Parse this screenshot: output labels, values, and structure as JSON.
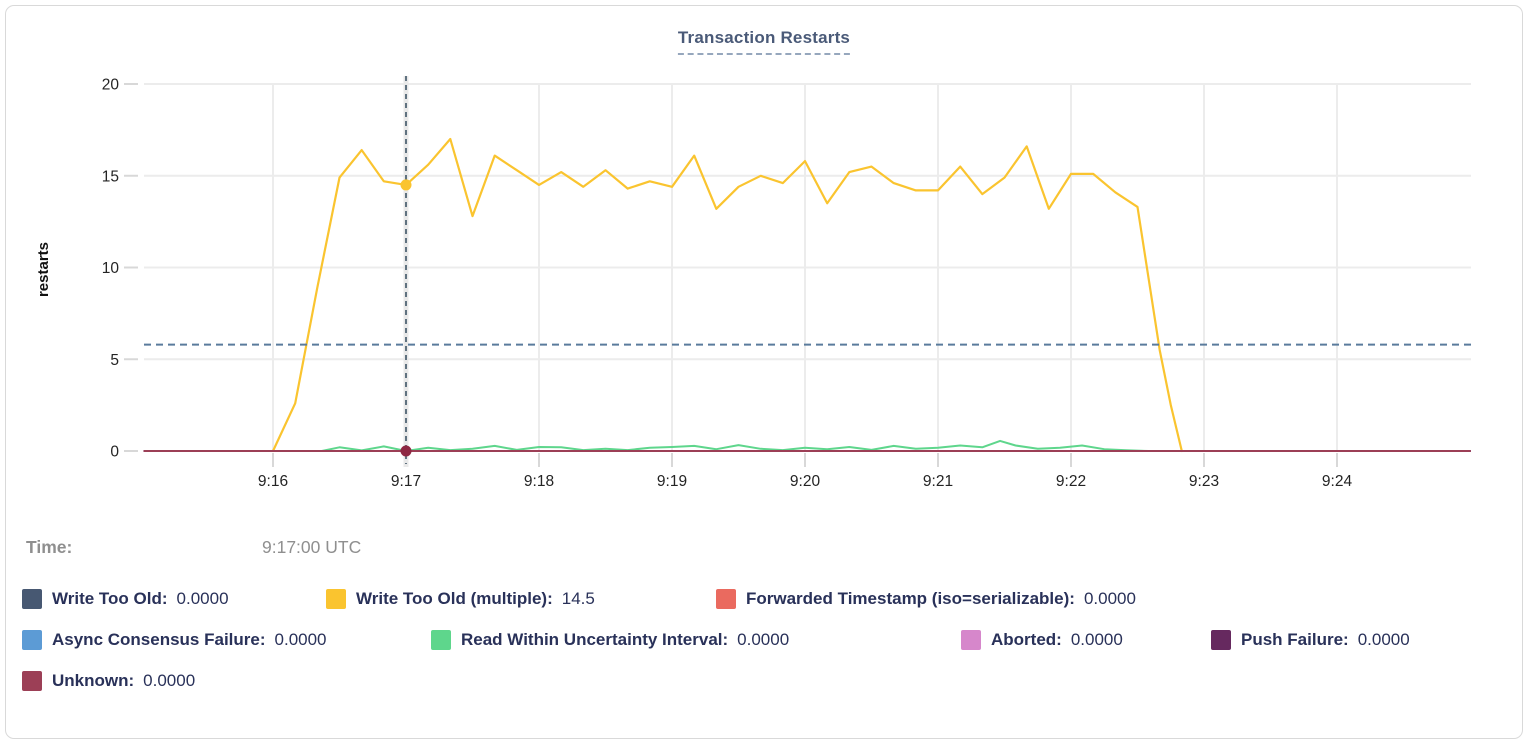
{
  "title": "Transaction Restarts",
  "hover": {
    "label": "Time:",
    "value": "9:17:00 UTC"
  },
  "chart_data": {
    "type": "line",
    "title": "Transaction Restarts",
    "ylabel": "restarts",
    "ylim": [
      0,
      20
    ],
    "y_ticks": [
      0,
      5,
      10,
      15,
      20
    ],
    "x_ticks": [
      "9:16",
      "9:17",
      "9:18",
      "9:19",
      "9:20",
      "9:21",
      "9:22",
      "9:23",
      "9:24"
    ],
    "grid": true,
    "avg_dashed_line_value": 5.8,
    "crosshair": {
      "time": "9:17:00",
      "tick_index": 1,
      "dots": [
        {
          "series": "Write Too Old (multiple)",
          "value": 14.5,
          "color": "#fac42f"
        },
        {
          "series": "Unknown",
          "value": 0,
          "color": "#8e2742"
        }
      ]
    },
    "t_unit": "seconds after 9:15:00 UTC",
    "series": [
      {
        "name": "Write Too Old",
        "color": "#475872",
        "points": [
          [
            2,
            0
          ],
          [
            600,
            0
          ]
        ]
      },
      {
        "name": "Write Too Old (multiple)",
        "color": "#fac42f",
        "points": [
          [
            60,
            0
          ],
          [
            70,
            2.6
          ],
          [
            80,
            8.9
          ],
          [
            90,
            14.9
          ],
          [
            100,
            16.4
          ],
          [
            110,
            14.7
          ],
          [
            120,
            14.5
          ],
          [
            130,
            15.6
          ],
          [
            140,
            17.0
          ],
          [
            150,
            12.8
          ],
          [
            160,
            16.1
          ],
          [
            170,
            15.3
          ],
          [
            180,
            14.5
          ],
          [
            190,
            15.2
          ],
          [
            200,
            14.4
          ],
          [
            210,
            15.3
          ],
          [
            220,
            14.3
          ],
          [
            230,
            14.7
          ],
          [
            240,
            14.4
          ],
          [
            250,
            16.1
          ],
          [
            260,
            13.2
          ],
          [
            270,
            14.4
          ],
          [
            280,
            15.0
          ],
          [
            290,
            14.6
          ],
          [
            300,
            15.8
          ],
          [
            310,
            13.5
          ],
          [
            320,
            15.2
          ],
          [
            330,
            15.5
          ],
          [
            340,
            14.6
          ],
          [
            350,
            14.2
          ],
          [
            360,
            14.2
          ],
          [
            370,
            15.5
          ],
          [
            380,
            14.0
          ],
          [
            390,
            14.9
          ],
          [
            400,
            16.6
          ],
          [
            410,
            13.2
          ],
          [
            420,
            15.1
          ],
          [
            430,
            15.1
          ],
          [
            440,
            14.1
          ],
          [
            450,
            13.3
          ],
          [
            460,
            5.5
          ],
          [
            465,
            2.5
          ],
          [
            470,
            0
          ]
        ]
      },
      {
        "name": "Forwarded Timestamp (iso=serializable)",
        "color": "#ea6a5f",
        "points": [
          [
            2,
            0
          ],
          [
            600,
            0
          ]
        ]
      },
      {
        "name": "Async Consensus Failure",
        "color": "#5c9bd5",
        "points": [
          [
            2,
            0
          ],
          [
            600,
            0
          ]
        ]
      },
      {
        "name": "Read Within Uncertainty Interval",
        "color": "#5ed68c",
        "points": [
          [
            82,
            0
          ],
          [
            90,
            0.2
          ],
          [
            100,
            0.03
          ],
          [
            110,
            0.25
          ],
          [
            120,
            0
          ],
          [
            130,
            0.18
          ],
          [
            140,
            0.05
          ],
          [
            150,
            0.12
          ],
          [
            160,
            0.28
          ],
          [
            170,
            0.06
          ],
          [
            180,
            0.22
          ],
          [
            190,
            0.2
          ],
          [
            200,
            0.05
          ],
          [
            210,
            0.12
          ],
          [
            220,
            0.05
          ],
          [
            230,
            0.18
          ],
          [
            240,
            0.22
          ],
          [
            250,
            0.28
          ],
          [
            260,
            0.1
          ],
          [
            270,
            0.32
          ],
          [
            280,
            0.12
          ],
          [
            290,
            0.05
          ],
          [
            300,
            0.18
          ],
          [
            310,
            0.1
          ],
          [
            320,
            0.22
          ],
          [
            330,
            0.06
          ],
          [
            340,
            0.28
          ],
          [
            350,
            0.12
          ],
          [
            360,
            0.18
          ],
          [
            370,
            0.3
          ],
          [
            380,
            0.2
          ],
          [
            388,
            0.55
          ],
          [
            395,
            0.3
          ],
          [
            405,
            0.12
          ],
          [
            415,
            0.18
          ],
          [
            425,
            0.3
          ],
          [
            435,
            0.1
          ],
          [
            445,
            0.04
          ],
          [
            455,
            0
          ]
        ]
      },
      {
        "name": "Aborted",
        "color": "#d687cb",
        "points": [
          [
            2,
            0
          ],
          [
            600,
            0
          ]
        ]
      },
      {
        "name": "Push Failure",
        "color": "#66295f",
        "points": [
          [
            2,
            0
          ],
          [
            600,
            0
          ]
        ]
      },
      {
        "name": "Unknown",
        "color": "#9c3f56",
        "points": [
          [
            2,
            0
          ],
          [
            600,
            0
          ]
        ]
      }
    ]
  },
  "legend": {
    "rows": [
      [
        {
          "label": "Write Too Old:",
          "value": "0.0000",
          "color": "#475872"
        },
        {
          "label": "Write Too Old (multiple):",
          "value": "14.5",
          "color": "#fac42f"
        },
        {
          "label": "Forwarded Timestamp (iso=serializable):",
          "value": "0.0000",
          "color": "#ea6a5f"
        }
      ],
      [
        {
          "label": "Async Consensus Failure:",
          "value": "0.0000",
          "color": "#5c9bd5"
        },
        {
          "label": "Read Within Uncertainty Interval:",
          "value": "0.0000",
          "color": "#5ed68c"
        },
        {
          "label": "Aborted:",
          "value": "0.0000",
          "color": "#d687cb"
        },
        {
          "label": "Push Failure:",
          "value": "0.0000",
          "color": "#66295f"
        }
      ],
      [
        {
          "label": "Unknown:",
          "value": "0.0000",
          "color": "#9c3f56"
        }
      ]
    ]
  }
}
